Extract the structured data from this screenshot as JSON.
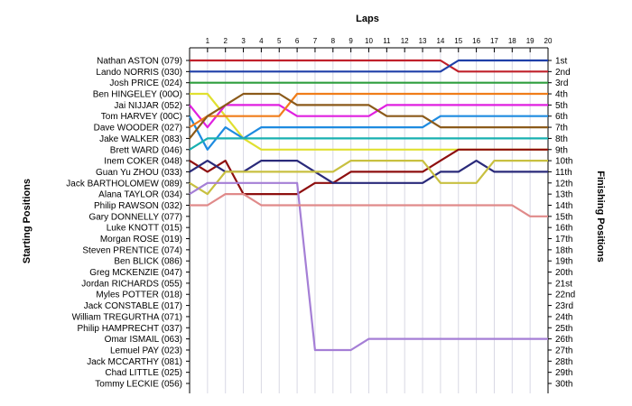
{
  "chart_data": {
    "type": "line",
    "title": "Laps",
    "ylabel_left": "Starting Positions",
    "ylabel_right": "Finishing Positions",
    "laps": [
      "1",
      "2",
      "3",
      "4",
      "5",
      "6",
      "7",
      "8",
      "9",
      "10",
      "11",
      "12",
      "13",
      "14",
      "15",
      "16",
      "17",
      "18",
      "19",
      "20"
    ],
    "start_labels": [
      "Nathan ASTON (079)",
      "Lando NORRIS (030)",
      "Josh PRICE (024)",
      "Ben HINGELEY (00O)",
      "Jai NIJJAR (052)",
      "Tom HARVEY (00C)",
      "Dave WOODER (027)",
      "Jake WALKER (083)",
      "Brett WARD (046)",
      "Inem COKER (048)",
      "Guan Yu ZHOU (033)",
      "Jack BARTHOLOMEW (089)",
      "Alana TAYLOR (034)",
      "Philip RAWSON (032)",
      "Gary DONNELLY (077)",
      "Luke KNOTT (015)",
      "Morgan ROSE (019)",
      "Steven PRENTICE (074)",
      "Ben BLICK (086)",
      "Greg MCKENZIE (047)",
      "Jordan RICHARDS (055)",
      "Myles POTTER (018)",
      "Jack CONSTABLE (017)",
      "William TREGURTHA (071)",
      "Philip HAMPRECHT (037)",
      "Omar ISMAIL (063)",
      "Lemuel PAY (023)",
      "Jack MCCARTHY (081)",
      "Chad LITTLE (025)",
      "Tommy LECKIE (056)"
    ],
    "finish_labels": [
      "1st",
      "2nd",
      "3rd",
      "4th",
      "5th",
      "6th",
      "7th",
      "8th",
      "9th",
      "10th",
      "11th",
      "12th",
      "13th",
      "14th",
      "15th",
      "16th",
      "17th",
      "18th",
      "19th",
      "20th",
      "21st",
      "22nd",
      "23rd",
      "24th",
      "25th",
      "26th",
      "27th",
      "28th",
      "29th",
      "30th"
    ],
    "series": [
      {
        "color": "#c0202a",
        "positions": [
          1,
          1,
          1,
          1,
          1,
          1,
          1,
          1,
          1,
          1,
          1,
          1,
          1,
          1,
          1,
          2,
          2,
          2,
          2,
          2,
          2
        ]
      },
      {
        "color": "#1f3fa8",
        "positions": [
          2,
          2,
          2,
          2,
          2,
          2,
          2,
          2,
          2,
          2,
          2,
          2,
          2,
          2,
          2,
          1,
          1,
          1,
          1,
          1,
          1
        ]
      },
      {
        "color": "#2e9e3e",
        "positions": [
          3,
          3,
          3,
          3,
          3,
          3,
          3,
          3,
          3,
          3,
          3,
          3,
          3,
          3,
          3,
          3,
          3,
          3,
          3,
          3,
          3
        ]
      },
      {
        "color": "#e0e030",
        "positions": [
          4,
          4,
          6,
          8,
          9,
          9,
          9,
          9,
          9,
          9,
          9,
          9,
          9,
          9,
          9,
          9,
          9,
          9,
          9,
          9,
          9
        ]
      },
      {
        "color": "#e020e0",
        "positions": [
          5,
          7,
          5,
          5,
          5,
          5,
          6,
          6,
          6,
          6,
          6,
          5,
          5,
          5,
          5,
          5,
          5,
          5,
          5,
          5,
          5
        ]
      },
      {
        "color": "#1e8be0",
        "positions": [
          6,
          9,
          7,
          8,
          7,
          7,
          7,
          7,
          7,
          7,
          7,
          7,
          7,
          7,
          6,
          6,
          6,
          6,
          6,
          6,
          6
        ]
      },
      {
        "color": "#f07d1a",
        "positions": [
          7,
          6,
          6,
          6,
          6,
          6,
          4,
          4,
          4,
          4,
          4,
          4,
          4,
          4,
          4,
          4,
          4,
          4,
          4,
          4,
          4
        ]
      },
      {
        "color": "#8b5a1a",
        "positions": [
          8,
          6,
          5,
          4,
          4,
          4,
          5,
          5,
          5,
          5,
          5,
          6,
          6,
          6,
          7,
          7,
          7,
          7,
          7,
          7,
          7
        ]
      },
      {
        "color": "#18b0b0",
        "positions": [
          9,
          8,
          8,
          8,
          8,
          8,
          8,
          8,
          8,
          8,
          8,
          8,
          8,
          8,
          8,
          8,
          8,
          8,
          8,
          8,
          8
        ]
      },
      {
        "color": "#8e0f0f",
        "positions": [
          10,
          11,
          10,
          13,
          13,
          13,
          13,
          12,
          12,
          11,
          11,
          11,
          11,
          11,
          10,
          9,
          9,
          9,
          9,
          9,
          9
        ]
      },
      {
        "color": "#2a2a7a",
        "positions": [
          11,
          10,
          11,
          11,
          10,
          10,
          10,
          11,
          12,
          12,
          12,
          12,
          12,
          12,
          11,
          11,
          10,
          11,
          11,
          11,
          11
        ]
      },
      {
        "color": "#c8c040",
        "positions": [
          12,
          13,
          11,
          11,
          11,
          11,
          11,
          11,
          11,
          10,
          10,
          10,
          10,
          10,
          12,
          12,
          12,
          10,
          10,
          10,
          10
        ]
      },
      {
        "color": "#a57fd6",
        "positions": [
          13,
          12,
          12,
          12,
          12,
          12,
          12,
          27,
          27,
          27,
          26,
          26,
          26,
          26,
          26,
          26,
          26,
          26,
          26,
          26,
          26
        ]
      },
      {
        "color": "#e08a8a",
        "positions": [
          14,
          14,
          13,
          13,
          14,
          14,
          14,
          14,
          14,
          14,
          14,
          14,
          14,
          14,
          14,
          14,
          14,
          14,
          14,
          15,
          15
        ]
      }
    ]
  }
}
